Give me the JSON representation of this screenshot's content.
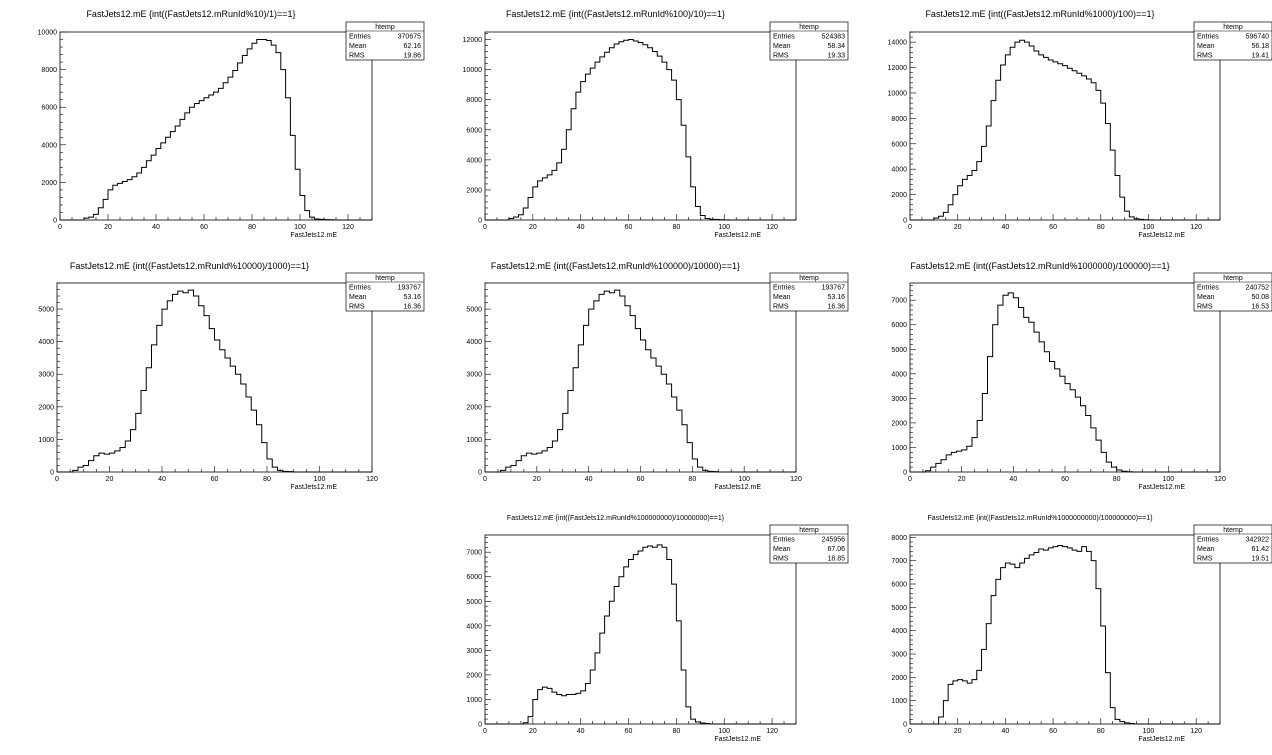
{
  "chart_data": [
    {
      "type": "bar",
      "title": "FastJets12.mE {int((FastJets12.mRunId%10)/1)==1}",
      "xlabel": "FastJets12.mE",
      "ylabel": "",
      "xlim": [
        0,
        130
      ],
      "ylim": [
        0,
        10000
      ],
      "xticks": [
        "0",
        "20",
        "40",
        "60",
        "80",
        "100",
        "120"
      ],
      "yticks": [
        "0",
        "2000",
        "4000",
        "6000",
        "8000",
        "10000"
      ],
      "stats": {
        "name": "htemp",
        "entries_label": "Entries",
        "entries": "370675",
        "mean_label": "Mean",
        "mean": "62.16",
        "rms_label": "RMS",
        "rms": "19.86"
      },
      "grid": false,
      "legend": "top-right",
      "values": [
        0,
        0,
        0,
        0,
        0,
        100,
        150,
        300,
        650,
        1100,
        1600,
        1850,
        1950,
        2050,
        2150,
        2300,
        2500,
        2800,
        3150,
        3450,
        3800,
        4100,
        4400,
        4700,
        5000,
        5350,
        5700,
        6000,
        6200,
        6350,
        6500,
        6650,
        6800,
        7000,
        7300,
        7600,
        7950,
        8350,
        8750,
        9100,
        9400,
        9600,
        9600,
        9550,
        9300,
        8900,
        8000,
        6500,
        4500,
        2700,
        1300,
        500,
        150,
        50,
        30,
        20,
        10,
        0,
        0,
        0,
        0,
        0,
        0,
        0,
        0
      ]
    },
    {
      "type": "bar",
      "title": "FastJets12.mE {int((FastJets12.mRunId%100)/10)==1}",
      "xlabel": "FastJets12.mE",
      "ylabel": "",
      "xlim": [
        0,
        130
      ],
      "ylim": [
        0,
        12500
      ],
      "xticks": [
        "0",
        "20",
        "40",
        "60",
        "80",
        "100",
        "120"
      ],
      "yticks": [
        "0",
        "2000",
        "4000",
        "6000",
        "8000",
        "10000",
        "12000"
      ],
      "stats": {
        "name": "htemp",
        "entries_label": "Entries",
        "entries": "524383",
        "mean_label": "Mean",
        "mean": "58.34",
        "rms_label": "RMS",
        "rms": "19.33"
      },
      "grid": false,
      "legend": "top-right",
      "values": [
        0,
        0,
        0,
        0,
        0,
        100,
        200,
        350,
        800,
        1500,
        2200,
        2600,
        2800,
        3000,
        3300,
        3800,
        4700,
        6000,
        7400,
        8500,
        9200,
        9700,
        10100,
        10500,
        10850,
        11150,
        11450,
        11700,
        11850,
        11950,
        12000,
        11900,
        11800,
        11650,
        11450,
        11200,
        10900,
        10500,
        10000,
        9300,
        8000,
        6300,
        4200,
        2200,
        900,
        300,
        100,
        50,
        30,
        20,
        10,
        0,
        0,
        0,
        0,
        0,
        0,
        0,
        0,
        0,
        0,
        0,
        0,
        0,
        0
      ]
    },
    {
      "type": "bar",
      "title": "FastJets12.mE {int((FastJets12.mRunId%1000)/100)==1}",
      "xlabel": "FastJets12.mE",
      "ylabel": "",
      "xlim": [
        0,
        130
      ],
      "ylim": [
        0,
        14800
      ],
      "xticks": [
        "0",
        "20",
        "40",
        "60",
        "80",
        "100",
        "120"
      ],
      "yticks": [
        "0",
        "2000",
        "4000",
        "6000",
        "8000",
        "10000",
        "12000",
        "14000"
      ],
      "stats": {
        "name": "htemp",
        "entries_label": "Entries",
        "entries": "596740",
        "mean_label": "Mean",
        "mean": "56.18",
        "rms_label": "RMS",
        "rms": "19.41"
      },
      "grid": false,
      "legend": "top-right",
      "values": [
        0,
        0,
        0,
        0,
        0,
        150,
        300,
        600,
        1200,
        2000,
        2700,
        3200,
        3500,
        3900,
        4600,
        5800,
        7400,
        9400,
        11000,
        12200,
        13000,
        13600,
        14000,
        14150,
        14000,
        13700,
        13300,
        13000,
        12800,
        12600,
        12450,
        12300,
        12150,
        11950,
        11750,
        11550,
        11350,
        11100,
        10800,
        10200,
        9200,
        7600,
        5500,
        3500,
        1800,
        700,
        250,
        100,
        50,
        20,
        10,
        0,
        0,
        0,
        0,
        0,
        0,
        0,
        0,
        0,
        0,
        0,
        0,
        0,
        0
      ]
    },
    {
      "type": "bar",
      "title": "FastJets12.mE {int((FastJets12.mRunId%10000)/1000)==1}",
      "xlabel": "FastJets12.mE",
      "ylabel": "",
      "xlim": [
        0,
        120
      ],
      "ylim": [
        0,
        5800
      ],
      "xticks": [
        "0",
        "20",
        "40",
        "60",
        "80",
        "100",
        "120"
      ],
      "yticks": [
        "0",
        "1000",
        "2000",
        "3000",
        "4000",
        "5000"
      ],
      "stats": {
        "name": "htemp",
        "entries_label": "Entries",
        "entries": "193767",
        "mean_label": "Mean",
        "mean": "53.16",
        "rms_label": "RMS",
        "rms": "16.36"
      },
      "grid": false,
      "legend": "top-right",
      "values": [
        0,
        0,
        0,
        50,
        150,
        200,
        350,
        500,
        580,
        550,
        580,
        650,
        750,
        950,
        1300,
        1800,
        2500,
        3200,
        3900,
        4500,
        5000,
        5250,
        5450,
        5550,
        5500,
        5580,
        5400,
        5100,
        4800,
        4400,
        4050,
        3750,
        3500,
        3250,
        3000,
        2700,
        2300,
        1900,
        1450,
        900,
        400,
        150,
        50,
        20,
        10,
        0,
        0,
        0,
        0,
        0,
        0,
        0,
        0,
        0,
        0,
        0,
        0,
        0,
        0,
        0
      ]
    },
    {
      "type": "bar",
      "title": "FastJets12.mE {int((FastJets12.mRunId%100000)/10000)==1}",
      "xlabel": "FastJets12.mE",
      "ylabel": "",
      "xlim": [
        0,
        120
      ],
      "ylim": [
        0,
        5800
      ],
      "xticks": [
        "0",
        "20",
        "40",
        "60",
        "80",
        "100",
        "120"
      ],
      "yticks": [
        "0",
        "1000",
        "2000",
        "3000",
        "4000",
        "5000"
      ],
      "stats": {
        "name": "htemp",
        "entries_label": "Entries",
        "entries": "193767",
        "mean_label": "Mean",
        "mean": "53.16",
        "rms_label": "RMS",
        "rms": "16.36"
      },
      "grid": false,
      "legend": "top-right",
      "values": [
        0,
        0,
        0,
        50,
        150,
        200,
        350,
        500,
        580,
        550,
        580,
        650,
        750,
        950,
        1300,
        1800,
        2500,
        3200,
        3900,
        4500,
        5000,
        5250,
        5450,
        5550,
        5500,
        5580,
        5400,
        5100,
        4800,
        4400,
        4050,
        3750,
        3500,
        3250,
        3000,
        2700,
        2300,
        1900,
        1450,
        900,
        400,
        150,
        50,
        20,
        10,
        0,
        0,
        0,
        0,
        0,
        0,
        0,
        0,
        0,
        0,
        0,
        0,
        0,
        0,
        0
      ]
    },
    {
      "type": "bar",
      "title": "FastJets12.mE {int((FastJets12.mRunId%1000000)/100000)==1}",
      "xlabel": "FastJets12.mE",
      "ylabel": "",
      "xlim": [
        0,
        120
      ],
      "ylim": [
        0,
        7700
      ],
      "xticks": [
        "0",
        "20",
        "40",
        "60",
        "80",
        "100",
        "120"
      ],
      "yticks": [
        "0",
        "1000",
        "2000",
        "3000",
        "4000",
        "5000",
        "6000",
        "7000"
      ],
      "stats": {
        "name": "htemp",
        "entries_label": "Entries",
        "entries": "240752",
        "mean_label": "Mean",
        "mean": "50.08",
        "rms_label": "RMS",
        "rms": "16.53"
      },
      "grid": false,
      "legend": "top-right",
      "values": [
        0,
        0,
        0,
        50,
        200,
        350,
        500,
        700,
        800,
        850,
        900,
        1050,
        1400,
        2100,
        3200,
        4700,
        6000,
        6800,
        7200,
        7300,
        7100,
        6700,
        6300,
        6100,
        5700,
        5300,
        4900,
        4500,
        4200,
        3900,
        3600,
        3350,
        3050,
        2700,
        2300,
        1800,
        1300,
        800,
        400,
        200,
        80,
        30,
        10,
        0,
        0,
        0,
        0,
        0,
        0,
        0,
        0,
        0,
        0,
        0,
        0,
        0,
        0,
        0,
        0,
        0
      ]
    },
    {
      "type": "bar",
      "title": "FastJets12.mE {int((FastJets12.mRunId%100000000)/10000000)==1}",
      "xlabel": "FastJets12.mE",
      "ylabel": "",
      "xlim": [
        0,
        130
      ],
      "ylim": [
        0,
        7700
      ],
      "xticks": [
        "0",
        "20",
        "40",
        "60",
        "80",
        "100",
        "120"
      ],
      "yticks": [
        "0",
        "1000",
        "2000",
        "3000",
        "4000",
        "5000",
        "6000",
        "7000"
      ],
      "stats": {
        "name": "htemp",
        "entries_label": "Entries",
        "entries": "245956",
        "mean_label": "Mean",
        "mean": "67.06",
        "rms_label": "RMS",
        "rms": "18.85"
      },
      "grid": false,
      "legend": "top-right",
      "values": [
        0,
        0,
        0,
        0,
        0,
        0,
        0,
        0,
        50,
        300,
        1000,
        1400,
        1500,
        1450,
        1300,
        1200,
        1150,
        1200,
        1200,
        1250,
        1350,
        1650,
        2200,
        2900,
        3700,
        4400,
        5000,
        5600,
        6000,
        6400,
        6700,
        6900,
        7050,
        7200,
        7250,
        7200,
        7300,
        7200,
        6700,
        5700,
        4200,
        2200,
        700,
        200,
        80,
        40,
        20,
        0,
        0,
        0,
        0,
        0,
        0,
        0,
        0,
        0,
        0,
        0,
        0,
        0,
        0,
        0,
        0,
        0,
        0
      ]
    },
    {
      "type": "bar",
      "title": "FastJets12.mE {int((FastJets12.mRunId%1000000000)/100000000)==1}",
      "xlabel": "FastJets12.mE",
      "ylabel": "",
      "xlim": [
        0,
        130
      ],
      "ylim": [
        0,
        8100
      ],
      "xticks": [
        "0",
        "20",
        "40",
        "60",
        "80",
        "100",
        "120"
      ],
      "yticks": [
        "0",
        "1000",
        "2000",
        "3000",
        "4000",
        "5000",
        "6000",
        "7000",
        "8000"
      ],
      "stats": {
        "name": "htemp",
        "entries_label": "Entries",
        "entries": "342922",
        "mean_label": "Mean",
        "mean": "61.42",
        "rms_label": "RMS",
        "rms": "19.51"
      },
      "grid": false,
      "legend": "top-right",
      "values": [
        0,
        0,
        0,
        0,
        0,
        0,
        300,
        1000,
        1700,
        1850,
        1900,
        1850,
        1750,
        1900,
        2300,
        3200,
        4300,
        5500,
        6200,
        6700,
        6900,
        6850,
        6700,
        6900,
        7100,
        7250,
        7350,
        7500,
        7450,
        7550,
        7600,
        7650,
        7600,
        7550,
        7450,
        7400,
        7600,
        7400,
        7000,
        5800,
        4200,
        2200,
        700,
        200,
        100,
        50,
        20,
        0,
        0,
        0,
        0,
        0,
        0,
        0,
        0,
        0,
        0,
        0,
        0,
        0,
        0,
        0,
        0,
        0,
        0
      ]
    }
  ]
}
